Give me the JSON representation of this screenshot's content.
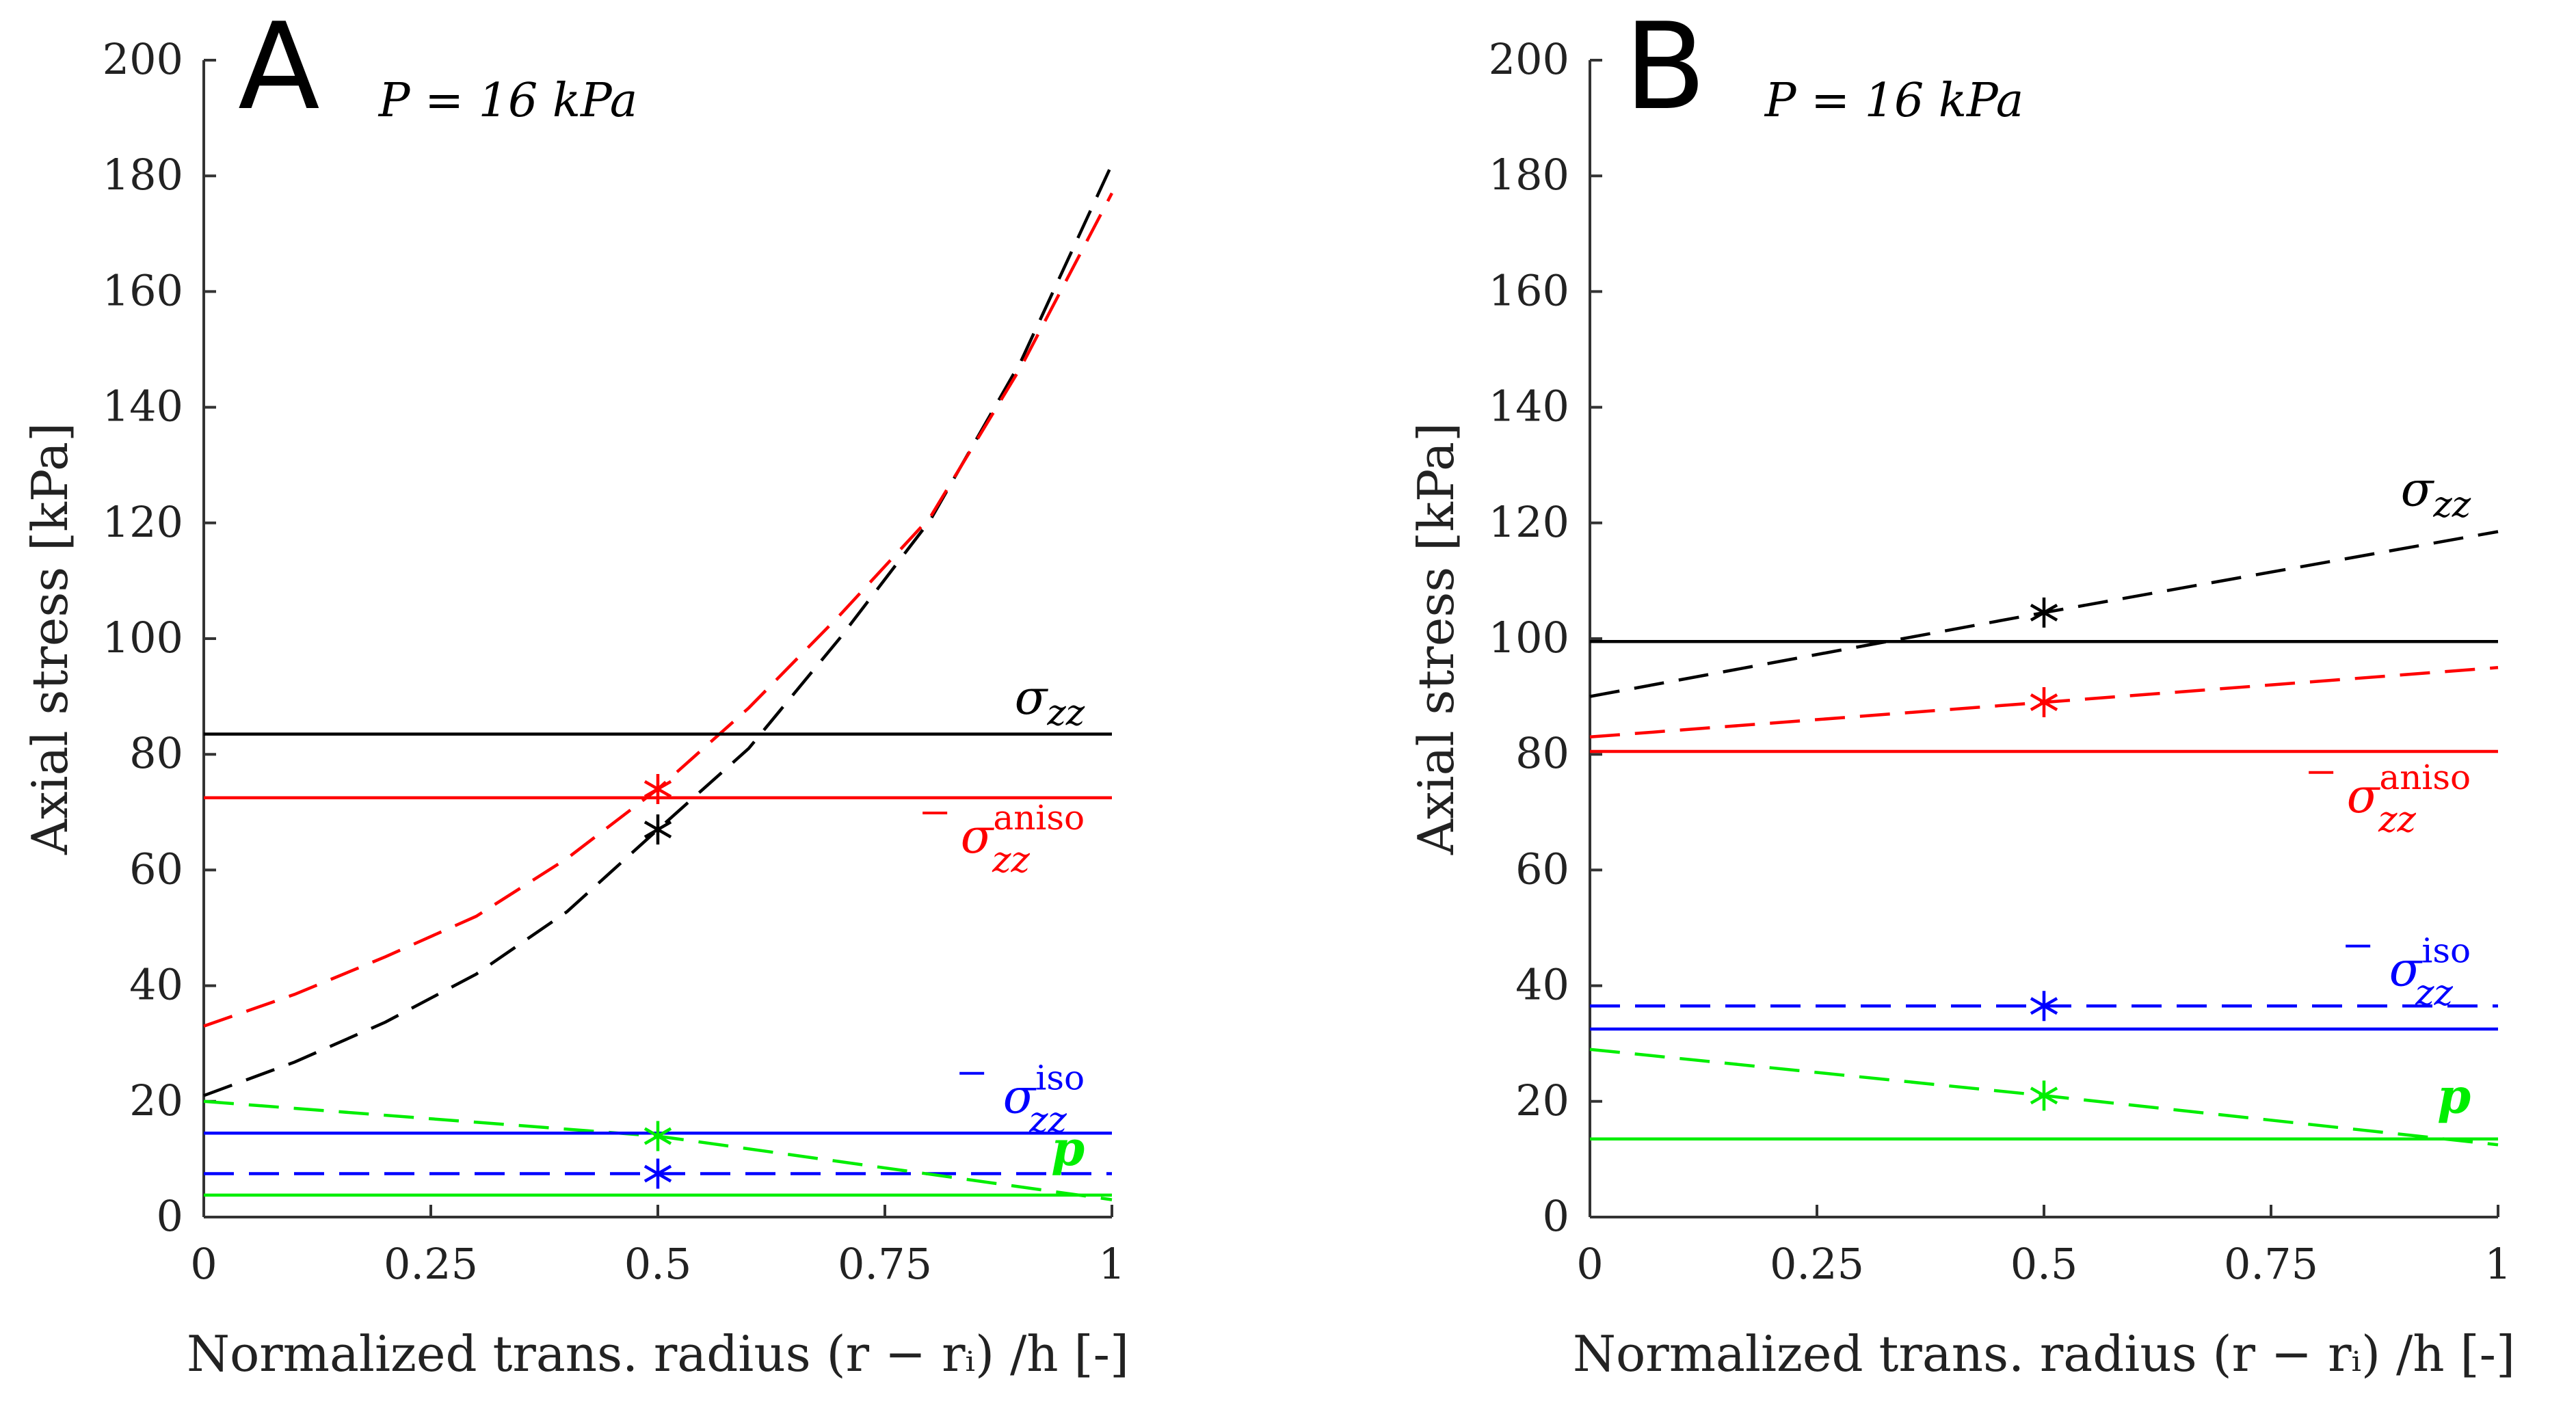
{
  "chart_data": [
    {
      "type": "line",
      "panel": "A",
      "title": "P = 16 kPa",
      "xlabel": "Normalized trans. radius (r − rᵢ) /h [-]",
      "ylabel": "Axial stress [kPa]",
      "xlim": [
        0,
        1
      ],
      "ylim": [
        0,
        200
      ],
      "xticks": [
        0,
        0.25,
        0.5,
        0.75,
        1
      ],
      "xtick_labels": [
        "0",
        "0.25",
        "0.5",
        "0.75",
        "1"
      ],
      "yticks": [
        0,
        20,
        40,
        60,
        80,
        100,
        120,
        140,
        160,
        180,
        200
      ],
      "ytick_labels": [
        "0",
        "20",
        "40",
        "60",
        "80",
        "100",
        "120",
        "140",
        "160",
        "180",
        "200"
      ],
      "series": [
        {
          "name": "σzz (local)",
          "color": "#000000",
          "style": "dashed",
          "x": [
            0,
            0.1,
            0.2,
            0.3,
            0.4,
            0.5,
            0.6,
            0.7,
            0.8,
            0.9,
            1.0
          ],
          "y": [
            21,
            26.8,
            33.7,
            42,
            52.8,
            67,
            81,
            100,
            120.5,
            148,
            182
          ]
        },
        {
          "name": "σ̄zz aniso (local)",
          "color": "#ff0000",
          "style": "dashed",
          "x": [
            0,
            0.1,
            0.2,
            0.3,
            0.4,
            0.5,
            0.6,
            0.7,
            0.8,
            0.9,
            1.0
          ],
          "y": [
            33,
            38.5,
            45,
            52,
            62,
            74,
            88,
            104,
            121,
            147,
            177
          ]
        },
        {
          "name": "σ̄zz iso (local)",
          "color": "#0000ff",
          "style": "dashed",
          "x": [
            0,
            1
          ],
          "y": [
            7.5,
            7.5
          ]
        },
        {
          "name": "p (local)",
          "color": "#00ee00",
          "style": "dashed",
          "x": [
            0,
            0.5,
            1.0
          ],
          "y": [
            20,
            14,
            3
          ]
        },
        {
          "name": "σzz (mean)",
          "color": "#000000",
          "style": "solid",
          "x": [
            0,
            1
          ],
          "y": [
            83.5,
            83.5
          ]
        },
        {
          "name": "σ̄zz aniso (mean)",
          "color": "#ff0000",
          "style": "solid",
          "x": [
            0,
            1
          ],
          "y": [
            72.5,
            72.5
          ]
        },
        {
          "name": "σ̄zz iso (mean)",
          "color": "#0000ff",
          "style": "solid",
          "x": [
            0,
            1
          ],
          "y": [
            14.5,
            14.5
          ]
        },
        {
          "name": "p (mean)",
          "color": "#00ee00",
          "style": "solid",
          "x": [
            0,
            1
          ],
          "y": [
            3.8,
            3.8
          ]
        }
      ],
      "markers": [
        {
          "color": "#000000",
          "x": 0.5,
          "y": 67
        },
        {
          "color": "#ff0000",
          "x": 0.5,
          "y": 74
        },
        {
          "color": "#00ee00",
          "x": 0.5,
          "y": 14
        },
        {
          "color": "#0000ff",
          "x": 0.5,
          "y": 7.5
        }
      ],
      "labels": [
        {
          "text": "σ",
          "sub": "zz",
          "sup": "",
          "bar": false,
          "color": "#000000",
          "x": 0.97,
          "y": 87
        },
        {
          "text": "σ",
          "sub": "zz",
          "sup": "aniso",
          "bar": true,
          "color": "#ff0000",
          "x": 0.97,
          "y": 63
        },
        {
          "text": "σ",
          "sub": "zz",
          "sup": "iso",
          "bar": true,
          "color": "#0000ff",
          "x": 0.97,
          "y": 18
        },
        {
          "text": "p",
          "sub": "",
          "sup": "",
          "bar": false,
          "color": "#00ee00",
          "x": 0.97,
          "y": 9
        }
      ]
    },
    {
      "type": "line",
      "panel": "B",
      "title": "P = 16 kPa",
      "xlabel": "Normalized trans. radius (r − rᵢ) /h [-]",
      "ylabel": "Axial stress [kPa]",
      "xlim": [
        0,
        1
      ],
      "ylim": [
        0,
        200
      ],
      "xticks": [
        0,
        0.25,
        0.5,
        0.75,
        1
      ],
      "xtick_labels": [
        "0",
        "0.25",
        "0.5",
        "0.75",
        "1"
      ],
      "yticks": [
        0,
        20,
        40,
        60,
        80,
        100,
        120,
        140,
        160,
        180,
        200
      ],
      "ytick_labels": [
        "0",
        "20",
        "40",
        "60",
        "80",
        "100",
        "120",
        "140",
        "160",
        "180",
        "200"
      ],
      "series": [
        {
          "name": "σzz (local)",
          "color": "#000000",
          "style": "dashed",
          "x": [
            0,
            0.5,
            1.0
          ],
          "y": [
            90,
            104.5,
            118.5
          ]
        },
        {
          "name": "σ̄zz aniso (local)",
          "color": "#ff0000",
          "style": "dashed",
          "x": [
            0,
            0.5,
            1.0
          ],
          "y": [
            83,
            89,
            95
          ]
        },
        {
          "name": "σ̄zz iso (local)",
          "color": "#0000ff",
          "style": "dashed",
          "x": [
            0,
            1
          ],
          "y": [
            36.5,
            36.5
          ]
        },
        {
          "name": "p (local)",
          "color": "#00ee00",
          "style": "dashed",
          "x": [
            0,
            0.5,
            1.0
          ],
          "y": [
            29,
            21,
            12.5
          ]
        },
        {
          "name": "σzz (mean)",
          "color": "#000000",
          "style": "solid",
          "x": [
            0,
            1
          ],
          "y": [
            99.5,
            99.5
          ]
        },
        {
          "name": "σ̄zz aniso (mean)",
          "color": "#ff0000",
          "style": "solid",
          "x": [
            0,
            1
          ],
          "y": [
            80.5,
            80.5
          ]
        },
        {
          "name": "σ̄zz iso (mean)",
          "color": "#0000ff",
          "style": "solid",
          "x": [
            0,
            1
          ],
          "y": [
            32.5,
            32.5
          ]
        },
        {
          "name": "p (mean)",
          "color": "#00ee00",
          "style": "solid",
          "x": [
            0,
            1
          ],
          "y": [
            13.5,
            13.5
          ]
        }
      ],
      "markers": [
        {
          "color": "#000000",
          "x": 0.5,
          "y": 104.5
        },
        {
          "color": "#ff0000",
          "x": 0.5,
          "y": 89
        },
        {
          "color": "#0000ff",
          "x": 0.5,
          "y": 36.5
        },
        {
          "color": "#00ee00",
          "x": 0.5,
          "y": 21
        }
      ],
      "labels": [
        {
          "text": "σ",
          "sub": "zz",
          "sup": "",
          "bar": false,
          "color": "#000000",
          "x": 0.97,
          "y": 123
        },
        {
          "text": "σ",
          "sub": "zz",
          "sup": "aniso",
          "bar": true,
          "color": "#ff0000",
          "x": 0.97,
          "y": 70
        },
        {
          "text": "σ",
          "sub": "zz",
          "sup": "iso",
          "bar": true,
          "color": "#0000ff",
          "x": 0.97,
          "y": 40
        },
        {
          "text": "p",
          "sub": "",
          "sup": "",
          "bar": false,
          "color": "#00ee00",
          "x": 0.97,
          "y": 18
        }
      ]
    }
  ]
}
